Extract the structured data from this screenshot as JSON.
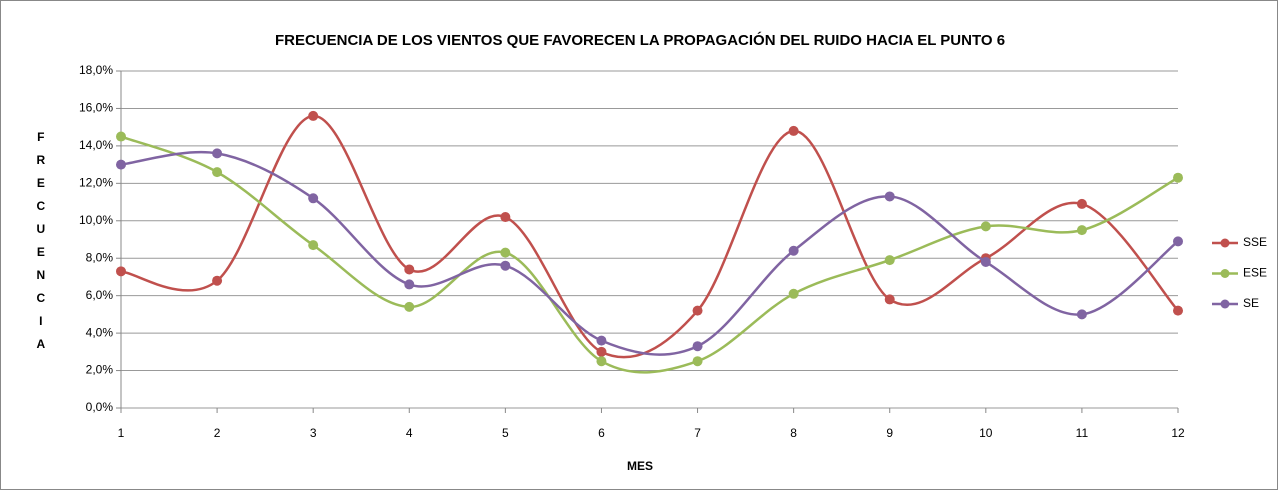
{
  "chart_data": {
    "type": "line",
    "title": "FRECUENCIA DE LOS VIENTOS QUE FAVORECEN LA PROPAGACIÓN DEL RUIDO HACIA EL PUNTO 6",
    "x_label": "MES",
    "y_label": "FRECUENCIA",
    "x": [
      1,
      2,
      3,
      4,
      5,
      6,
      7,
      8,
      9,
      10,
      11,
      12
    ],
    "xlim": [
      1,
      12
    ],
    "xticks": [
      1,
      2,
      3,
      4,
      5,
      6,
      7,
      8,
      9,
      10,
      11,
      12
    ],
    "ylim": [
      0,
      18
    ],
    "yticks": [
      {
        "value": 0,
        "label": "0,0%"
      },
      {
        "value": 2,
        "label": "2,0%"
      },
      {
        "value": 4,
        "label": "4,0%"
      },
      {
        "value": 6,
        "label": "6,0%"
      },
      {
        "value": 8,
        "label": "8,0%"
      },
      {
        "value": 10,
        "label": "10,0%"
      },
      {
        "value": 12,
        "label": "12,0%"
      },
      {
        "value": 14,
        "label": "14,0%"
      },
      {
        "value": 16,
        "label": "16,0%"
      },
      {
        "value": 18,
        "label": "18,0%"
      }
    ],
    "grid": true,
    "smooth": true,
    "legend": "right",
    "series": [
      {
        "name": "SSE",
        "color": "#c0504d",
        "values": [
          7.3,
          6.8,
          15.6,
          7.4,
          10.2,
          3.0,
          5.2,
          14.8,
          5.8,
          8.0,
          10.9,
          5.2
        ]
      },
      {
        "name": "ESE",
        "color": "#9bbb59",
        "values": [
          14.5,
          12.6,
          8.7,
          5.4,
          8.3,
          2.5,
          2.5,
          6.1,
          7.9,
          9.7,
          9.5,
          12.3
        ]
      },
      {
        "name": "SE",
        "color": "#8064a2",
        "values": [
          13.0,
          13.6,
          11.2,
          6.6,
          7.6,
          3.6,
          3.3,
          8.4,
          11.3,
          7.8,
          5.0,
          8.9
        ]
      }
    ]
  }
}
